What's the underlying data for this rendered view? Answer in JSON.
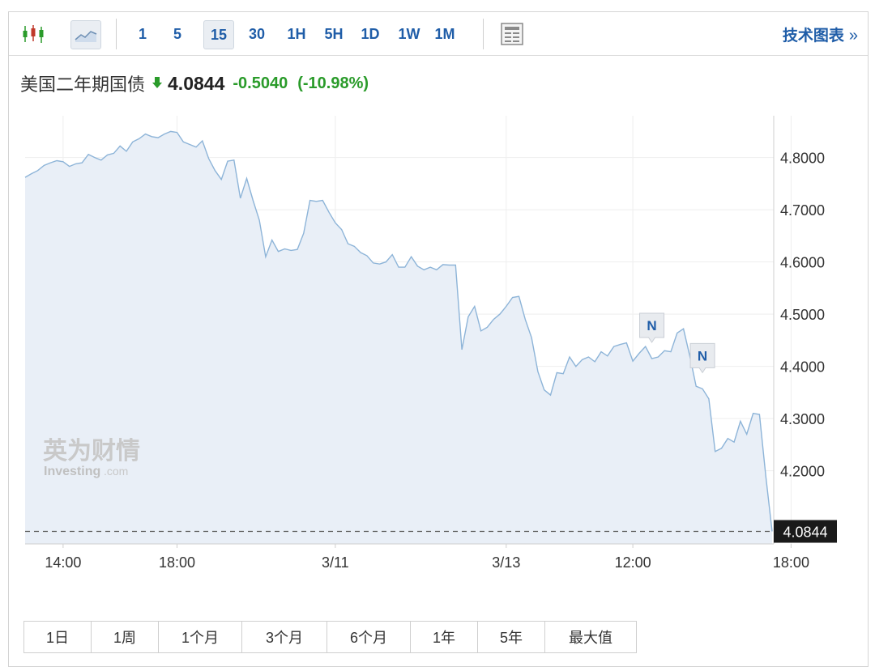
{
  "toolbar": {
    "candlestick_icon": "candlestick-icon",
    "area_icon": "area-chart-icon",
    "intervals": [
      "1",
      "5",
      "15",
      "30",
      "1H",
      "5H",
      "1D",
      "1W",
      "1M"
    ],
    "active_interval": "15",
    "table_icon": "table-icon",
    "tech_chart_label": "技术图表",
    "tech_chart_arrow": "»"
  },
  "header": {
    "name": "美国二年期国债",
    "price": "4.0844",
    "change": "-0.5040",
    "change_pct": "(-10.98%)"
  },
  "watermark": {
    "line1": "英为财情",
    "line2": "Investing",
    "line2b": ".com"
  },
  "news_markers": [
    {
      "label": "N",
      "x_index": 99
    },
    {
      "label": "N",
      "x_index": 107
    }
  ],
  "range_buttons": [
    "1日",
    "1周",
    "1个月",
    "3个月",
    "6个月",
    "1年",
    "5年",
    "最大值"
  ],
  "colors": {
    "line": "#8db4d8",
    "area": "#e9eff7",
    "accent": "#1f5da8",
    "down": "#2a9b2a",
    "last_tag": "#1a1a1a"
  },
  "chart_data": {
    "type": "area",
    "title": "",
    "xlabel": "",
    "ylabel": "",
    "ylim": [
      4.06,
      4.88
    ],
    "y_ticks": [
      "4.8000",
      "4.7000",
      "4.6000",
      "4.5000",
      "4.4000",
      "4.3000",
      "4.2000"
    ],
    "y_tick_values": [
      4.8,
      4.7,
      4.6,
      4.5,
      4.4,
      4.3,
      4.2
    ],
    "x_tick_labels": [
      "14:00",
      "18:00",
      "3/11",
      "3/13",
      "12:00",
      "18:00"
    ],
    "x_tick_indices": [
      6,
      24,
      49,
      76,
      96,
      121
    ],
    "last_value": "4.0844",
    "grid": true,
    "series": [
      {
        "values": [
          4.762,
          4.769,
          4.775,
          4.785,
          4.79,
          4.794,
          4.792,
          4.783,
          4.788,
          4.79,
          4.806,
          4.8,
          4.795,
          4.805,
          4.808,
          4.822,
          4.812,
          4.83,
          4.836,
          4.845,
          4.84,
          4.838,
          4.845,
          4.85,
          4.848,
          4.83,
          4.825,
          4.82,
          4.832,
          4.798,
          4.775,
          4.758,
          4.793,
          4.795,
          4.722,
          4.76,
          4.718,
          4.68,
          4.61,
          4.642,
          4.62,
          4.625,
          4.622,
          4.624,
          4.655,
          4.718,
          4.716,
          4.718,
          4.695,
          4.675,
          4.662,
          4.635,
          4.63,
          4.618,
          4.612,
          4.598,
          4.596,
          4.6,
          4.614,
          4.59,
          4.59,
          4.61,
          4.592,
          4.585,
          4.59,
          4.585,
          4.595,
          4.594,
          4.594,
          4.432,
          4.495,
          4.515,
          4.468,
          4.475,
          4.49,
          4.5,
          4.515,
          4.532,
          4.534,
          4.49,
          4.455,
          4.39,
          4.355,
          4.345,
          4.388,
          4.386,
          4.418,
          4.4,
          4.413,
          4.418,
          4.409,
          4.428,
          4.42,
          4.438,
          4.442,
          4.445,
          4.41,
          4.425,
          4.438,
          4.415,
          4.418,
          4.43,
          4.428,
          4.464,
          4.472,
          4.42,
          4.362,
          4.357,
          4.338,
          4.237,
          4.243,
          4.262,
          4.255,
          4.295,
          4.27,
          4.31,
          4.308,
          4.19,
          4.084
        ]
      }
    ]
  }
}
